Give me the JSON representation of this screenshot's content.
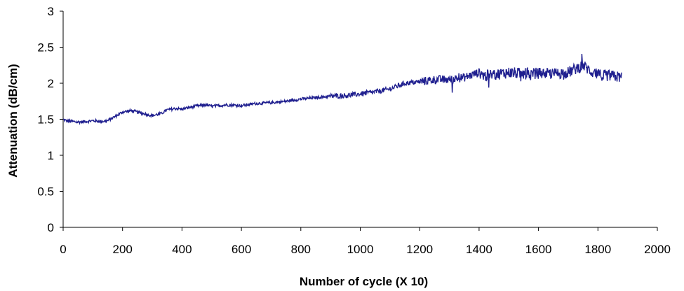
{
  "chart_data": {
    "type": "line",
    "title": "",
    "xlabel": "Number of cycle (X 10)",
    "ylabel": "Attenuation (dB/cm)",
    "xlim": [
      0,
      2000
    ],
    "ylim": [
      0,
      3
    ],
    "x_ticks": [
      0,
      200,
      400,
      600,
      800,
      1000,
      1200,
      1400,
      1600,
      1800,
      2000
    ],
    "y_ticks": [
      0,
      0.5,
      1,
      1.5,
      2,
      2.5,
      3
    ],
    "y_tick_labels": [
      "0",
      "0.5",
      "1",
      "1.5",
      "2",
      "2.5",
      "3"
    ],
    "grid": false,
    "legend": "none",
    "series": [
      {
        "color": "#1f1f8f",
        "x": [
          0,
          10,
          30,
          50,
          80,
          100,
          130,
          150,
          180,
          200,
          230,
          250,
          280,
          300,
          330,
          350,
          380,
          400,
          430,
          460,
          480,
          500,
          550,
          600,
          650,
          700,
          750,
          800,
          850,
          900,
          950,
          1000,
          1050,
          1100,
          1150,
          1200,
          1250,
          1300,
          1350,
          1400,
          1420,
          1450,
          1500,
          1550,
          1600,
          1650,
          1700,
          1750,
          1780,
          1800,
          1850,
          1880
        ],
        "y": [
          1.5,
          1.48,
          1.47,
          1.46,
          1.47,
          1.48,
          1.47,
          1.48,
          1.55,
          1.6,
          1.62,
          1.6,
          1.57,
          1.55,
          1.58,
          1.63,
          1.65,
          1.64,
          1.67,
          1.69,
          1.7,
          1.68,
          1.7,
          1.69,
          1.72,
          1.73,
          1.75,
          1.78,
          1.8,
          1.82,
          1.83,
          1.85,
          1.88,
          1.92,
          2.0,
          2.02,
          2.05,
          2.05,
          2.08,
          2.15,
          2.1,
          2.12,
          2.15,
          2.13,
          2.14,
          2.13,
          2.15,
          2.25,
          2.15,
          2.12,
          2.1,
          2.08
        ]
      }
    ]
  }
}
